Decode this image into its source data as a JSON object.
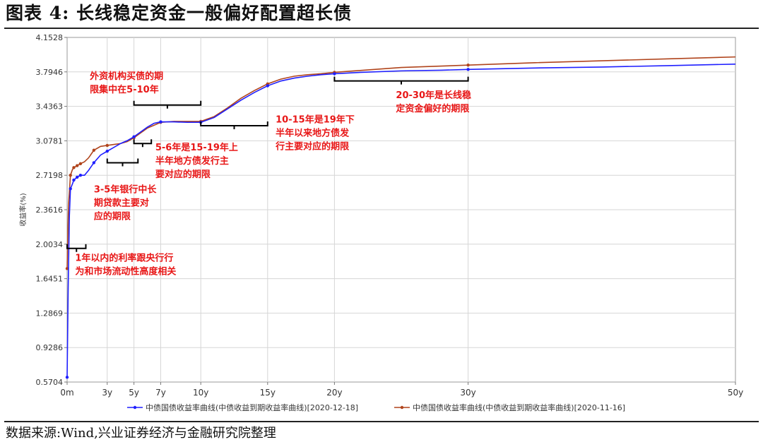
{
  "figure": {
    "title": "图表 4: 长线稳定资金一般偏好配置超长债",
    "source": "数据来源:Wind,兴业证券经济与金融研究院整理"
  },
  "chart_data": {
    "type": "line",
    "ylabel": "收益率(%)",
    "xlabel": "",
    "x_ticks": [
      {
        "v": 0,
        "label": "0m"
      },
      {
        "v": 3,
        "label": "3y"
      },
      {
        "v": 5,
        "label": "5y"
      },
      {
        "v": 7,
        "label": "7y"
      },
      {
        "v": 10,
        "label": "10y"
      },
      {
        "v": 15,
        "label": "15y"
      },
      {
        "v": 20,
        "label": "20y"
      },
      {
        "v": 30,
        "label": "30y"
      },
      {
        "v": 50,
        "label": "50y"
      }
    ],
    "y_ticks": [
      "0.5704",
      "0.9286",
      "1.2869",
      "1.6451",
      "2.0034",
      "2.3616",
      "2.7198",
      "3.0781",
      "3.4363",
      "3.7946",
      "4.1528"
    ],
    "xlim": [
      0,
      50
    ],
    "ylim": [
      0.5704,
      4.1528
    ],
    "grid": true,
    "legend_position": "bottom",
    "series": [
      {
        "name": "中债国债收益率曲线(中债收益到期收益率曲线)[2020-12-18]",
        "color": "#1f1fff",
        "marker_x": [
          0,
          0.25,
          0.5,
          0.75,
          1,
          2,
          3,
          5,
          7,
          10,
          15,
          20,
          30
        ],
        "points": [
          [
            0,
            0.62
          ],
          [
            0.08,
            1.55
          ],
          [
            0.17,
            2.3
          ],
          [
            0.25,
            2.58
          ],
          [
            0.4,
            2.63
          ],
          [
            0.5,
            2.67
          ],
          [
            0.75,
            2.7
          ],
          [
            1,
            2.72
          ],
          [
            1.3,
            2.72
          ],
          [
            1.6,
            2.77
          ],
          [
            2,
            2.85
          ],
          [
            2.5,
            2.93
          ],
          [
            3,
            2.97
          ],
          [
            3.5,
            3.01
          ],
          [
            4,
            3.05
          ],
          [
            4.5,
            3.08
          ],
          [
            5,
            3.12
          ],
          [
            5.5,
            3.17
          ],
          [
            6,
            3.22
          ],
          [
            6.5,
            3.26
          ],
          [
            7,
            3.275
          ],
          [
            8,
            3.275
          ],
          [
            9,
            3.27
          ],
          [
            10,
            3.27
          ],
          [
            11,
            3.32
          ],
          [
            12,
            3.41
          ],
          [
            13,
            3.5
          ],
          [
            14,
            3.58
          ],
          [
            15,
            3.65
          ],
          [
            16,
            3.7
          ],
          [
            17,
            3.73
          ],
          [
            18,
            3.75
          ],
          [
            19,
            3.765
          ],
          [
            20,
            3.775
          ],
          [
            22,
            3.79
          ],
          [
            25,
            3.805
          ],
          [
            28,
            3.812
          ],
          [
            30,
            3.82
          ],
          [
            35,
            3.835
          ],
          [
            40,
            3.845
          ],
          [
            45,
            3.86
          ],
          [
            50,
            3.875
          ]
        ]
      },
      {
        "name": "中债国债收益率曲线(中债收益到期收益率曲线)[2020-11-16]",
        "color": "#b0441c",
        "marker_x": [
          0,
          0.25,
          0.5,
          0.75,
          1,
          2,
          3,
          5,
          7,
          10,
          15,
          20,
          30
        ],
        "points": [
          [
            0,
            1.75
          ],
          [
            0.1,
            2.4
          ],
          [
            0.25,
            2.72
          ],
          [
            0.4,
            2.78
          ],
          [
            0.5,
            2.8
          ],
          [
            0.75,
            2.82
          ],
          [
            1,
            2.84
          ],
          [
            1.3,
            2.86
          ],
          [
            1.6,
            2.9
          ],
          [
            2,
            2.98
          ],
          [
            2.5,
            3.02
          ],
          [
            3,
            3.03
          ],
          [
            3.5,
            3.04
          ],
          [
            4,
            3.05
          ],
          [
            4.5,
            3.07
          ],
          [
            5,
            3.11
          ],
          [
            5.5,
            3.16
          ],
          [
            6,
            3.21
          ],
          [
            6.5,
            3.24
          ],
          [
            7,
            3.27
          ],
          [
            8,
            3.28
          ],
          [
            9,
            3.28
          ],
          [
            10,
            3.28
          ],
          [
            11,
            3.33
          ],
          [
            12,
            3.42
          ],
          [
            13,
            3.52
          ],
          [
            14,
            3.6
          ],
          [
            15,
            3.67
          ],
          [
            16,
            3.72
          ],
          [
            17,
            3.75
          ],
          [
            18,
            3.765
          ],
          [
            19,
            3.775
          ],
          [
            20,
            3.79
          ],
          [
            22,
            3.81
          ],
          [
            25,
            3.84
          ],
          [
            28,
            3.855
          ],
          [
            30,
            3.865
          ],
          [
            35,
            3.89
          ],
          [
            40,
            3.91
          ],
          [
            45,
            3.93
          ],
          [
            50,
            3.95
          ]
        ]
      }
    ],
    "annotations": [
      {
        "text": [
          "1年以内的利率跟央行行",
          "为和市场流动性高度相关"
        ],
        "bracket": {
          "x1": 0,
          "x2": 1.4,
          "y": 1.96
        },
        "text_at": {
          "x": 0.6,
          "y": 1.83
        }
      },
      {
        "text": [
          "3-5年银行中长",
          "期贷款主要对",
          "应的期限"
        ],
        "bracket": {
          "x1": 3,
          "x2": 5.3,
          "y": 2.85
        },
        "text_at": {
          "x": 2.0,
          "y": 2.54
        }
      },
      {
        "text": [
          "5-6年是15-19年上",
          "半年地方债发行主",
          "要对应的期限"
        ],
        "bracket": {
          "x1": 5,
          "x2": 6.3,
          "y": 3.05
        },
        "text_at": {
          "x": 6.6,
          "y": 2.98
        }
      },
      {
        "text": [
          "外资机构买债的期",
          "限集中在5-10年"
        ],
        "bracket": {
          "x1": 5,
          "x2": 10,
          "y": 3.45
        },
        "text_at": {
          "x": 1.7,
          "y": 3.72
        }
      },
      {
        "text": [
          "10-15年是19年下",
          "半年以来地方债发",
          "行主要对应的期限"
        ],
        "bracket": {
          "x1": 10,
          "x2": 15,
          "y": 3.235
        },
        "text_at": {
          "x": 15.6,
          "y": 3.27
        }
      },
      {
        "text": [
          "20-30年是长线稳",
          "定资金偏好的期限"
        ],
        "bracket": {
          "x1": 20,
          "x2": 30,
          "y": 3.7
        },
        "text_at": {
          "x": 24.6,
          "y": 3.52
        }
      }
    ]
  }
}
